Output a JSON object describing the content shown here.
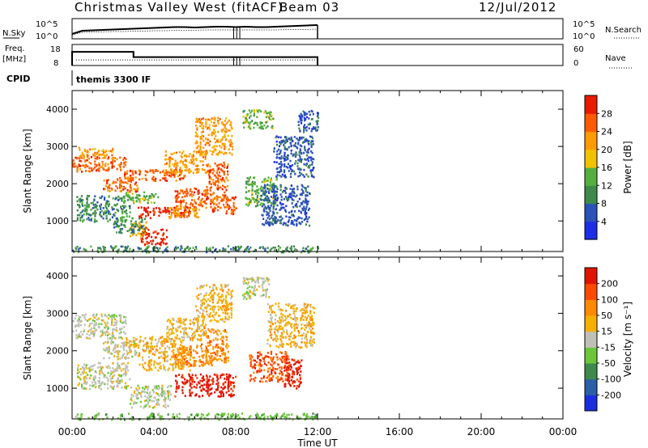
{
  "header": {
    "title": "Christmas Valley West (fitACF)",
    "beam": "Beam 03",
    "date": "12/Jul/2012"
  },
  "chart_data": [
    {
      "type": "line",
      "panel": "noise",
      "left_label": "N.Sky",
      "right_label": "N.Search",
      "left_ticks": [
        "10^5",
        "10^0"
      ],
      "right_ticks": [
        "10^5",
        "10^0"
      ],
      "x_hours": [
        0,
        0.5,
        1,
        1.5,
        2,
        2.5,
        3,
        3.5,
        4,
        4.5,
        5,
        5.5,
        6,
        6.5,
        7,
        7.5,
        8,
        8.5,
        9,
        9.5,
        10,
        10.5,
        11,
        11.5,
        12
      ],
      "n_sky_log": [
        1.2,
        2.0,
        2.1,
        2.2,
        2.3,
        2.4,
        2.5,
        2.6,
        2.7,
        2.8,
        2.9,
        2.9,
        2.8,
        2.9,
        3.0,
        3.0,
        2.9,
        3.0,
        2.9,
        2.9,
        3.0,
        3.1,
        3.2,
        3.3,
        3.4
      ],
      "n_search_log": [
        1.0,
        1.6,
        1.7,
        1.7,
        1.8,
        1.8,
        1.9,
        1.9,
        2.0,
        2.0,
        2.1,
        2.1,
        2.1,
        2.2,
        2.2,
        2.2,
        2.2,
        2.2,
        2.2,
        2.2,
        2.2,
        2.3,
        2.3,
        2.3,
        2.4
      ],
      "ylim_log": [
        0,
        5
      ]
    },
    {
      "type": "line",
      "panel": "frequency",
      "left_label": "Freq.",
      "left_unit": "[MHz]",
      "right_label": "Nave",
      "left_ticks": [
        "18",
        "8"
      ],
      "right_ticks": [
        "60",
        "0"
      ],
      "freq_steps": [
        {
          "from": 0,
          "to": 3,
          "value": 14.5
        },
        {
          "from": 3,
          "to": 12,
          "value": 12.0
        }
      ],
      "nave_level": 16,
      "ylim_freq": [
        8,
        18
      ],
      "ylim_nave": [
        0,
        60
      ]
    },
    {
      "type": "heatmap",
      "panel": "cpid",
      "label": "CPID",
      "program": "themis 3300 IF"
    },
    {
      "type": "heatmap",
      "panel": "power",
      "ylabel": "Slant Range [km]",
      "yticks": [
        "1000",
        "2000",
        "3000",
        "4000"
      ],
      "ylim": [
        180,
        4500
      ],
      "xlim_hours": [
        0,
        24
      ],
      "colorbar_label": "Power [dB]",
      "colorbar_ticks": [
        "4",
        "8",
        "12",
        "16",
        "20",
        "24",
        "28"
      ],
      "colors": [
        "#1e2ee6",
        "#2a52b8",
        "#3f8a4a",
        "#54b03e",
        "#f2c100",
        "#ff9a00",
        "#ff5a00",
        "#e81a00"
      ],
      "blobs": [
        {
          "t0": 0.0,
          "t1": 2.6,
          "r0": 2350,
          "r1": 2750,
          "level": 6
        },
        {
          "t0": 0.3,
          "t1": 2.0,
          "r0": 2700,
          "r1": 3000,
          "level": 5
        },
        {
          "t0": 1.5,
          "t1": 3.2,
          "r0": 1800,
          "r1": 2200,
          "level": 6
        },
        {
          "t0": 2.5,
          "t1": 5.5,
          "r0": 2100,
          "r1": 2400,
          "level": 6
        },
        {
          "t0": 4.5,
          "t1": 6.5,
          "r0": 2300,
          "r1": 2900,
          "level": 5
        },
        {
          "t0": 6.0,
          "t1": 7.8,
          "r0": 2800,
          "r1": 3800,
          "level": 5
        },
        {
          "t0": 3.2,
          "t1": 5.8,
          "r0": 1100,
          "r1": 1400,
          "level": 7
        },
        {
          "t0": 5.0,
          "t1": 6.8,
          "r0": 1350,
          "r1": 1900,
          "level": 6
        },
        {
          "t0": 6.5,
          "t1": 7.6,
          "r0": 1600,
          "r1": 2600,
          "level": 6
        },
        {
          "t0": 3.3,
          "t1": 4.6,
          "r0": 380,
          "r1": 800,
          "level": 7
        },
        {
          "t0": 2.8,
          "t1": 3.6,
          "r0": 600,
          "r1": 1000,
          "level": 5
        },
        {
          "t0": 0.2,
          "t1": 2.8,
          "r0": 1000,
          "r1": 1700,
          "level": 2
        },
        {
          "t0": 2.0,
          "t1": 3.6,
          "r0": 700,
          "r1": 1100,
          "level": 2
        },
        {
          "t0": 2.5,
          "t1": 4.2,
          "r0": 1500,
          "r1": 1800,
          "level": 3
        },
        {
          "t0": 4.6,
          "t1": 6.2,
          "r0": 1100,
          "r1": 1400,
          "level": 5
        },
        {
          "t0": 6.8,
          "t1": 8.0,
          "r0": 1200,
          "r1": 1700,
          "level": 6
        },
        {
          "t0": 8.3,
          "t1": 9.8,
          "r0": 3500,
          "r1": 4000,
          "level": 3
        },
        {
          "t0": 8.4,
          "t1": 10.0,
          "r0": 1400,
          "r1": 2200,
          "level": 3
        },
        {
          "t0": 9.2,
          "t1": 11.6,
          "r0": 900,
          "r1": 2000,
          "level": 1
        },
        {
          "t0": 9.8,
          "t1": 11.8,
          "r0": 2200,
          "r1": 3300,
          "level": 1
        },
        {
          "t0": 11.0,
          "t1": 12.0,
          "r0": 3400,
          "r1": 4000,
          "level": 1
        },
        {
          "t0": 0.0,
          "t1": 12.0,
          "r0": 180,
          "r1": 350,
          "level": 2
        }
      ]
    },
    {
      "type": "heatmap",
      "panel": "velocity",
      "ylabel": "Slant Range [km]",
      "yticks": [
        "1000",
        "2000",
        "3000",
        "4000"
      ],
      "ylim": [
        180,
        4500
      ],
      "xlim_hours": [
        0,
        24
      ],
      "xticks": [
        "00:00",
        "04:00",
        "08:00",
        "12:00",
        "16:00",
        "20:00",
        "00:00"
      ],
      "xlabel": "Time UT",
      "colorbar_label": "Velocity [m s⁻¹]",
      "colorbar_ticks": [
        "200",
        "100",
        "50",
        "15",
        "-15",
        "-50",
        "-100",
        "-200"
      ],
      "colors": [
        "#1a2ee0",
        "#2a5fa8",
        "#3f8a4a",
        "#6cc63a",
        "#c0c0b8",
        "#f5b000",
        "#ff8a00",
        "#ff4a00",
        "#e01400"
      ],
      "blobs": [
        {
          "t0": 0.0,
          "t1": 2.6,
          "r0": 2350,
          "r1": 3000,
          "level": 4
        },
        {
          "t0": 1.5,
          "t1": 3.2,
          "r0": 1800,
          "r1": 2300,
          "level": 4
        },
        {
          "t0": 0.2,
          "t1": 2.8,
          "r0": 1000,
          "r1": 1700,
          "level": 4
        },
        {
          "t0": 2.8,
          "t1": 4.8,
          "r0": 500,
          "r1": 1100,
          "level": 4
        },
        {
          "t0": 2.5,
          "t1": 5.5,
          "r0": 2100,
          "r1": 2400,
          "level": 5
        },
        {
          "t0": 4.5,
          "t1": 6.5,
          "r0": 2300,
          "r1": 2900,
          "level": 5
        },
        {
          "t0": 6.0,
          "t1": 7.8,
          "r0": 2800,
          "r1": 3800,
          "level": 5
        },
        {
          "t0": 3.2,
          "t1": 5.8,
          "r0": 1500,
          "r1": 2100,
          "level": 5
        },
        {
          "t0": 5.0,
          "t1": 6.8,
          "r0": 1600,
          "r1": 2200,
          "level": 6
        },
        {
          "t0": 6.5,
          "t1": 7.6,
          "r0": 1700,
          "r1": 2600,
          "level": 6
        },
        {
          "t0": 5.0,
          "t1": 8.0,
          "r0": 800,
          "r1": 1400,
          "level": 8
        },
        {
          "t0": 8.3,
          "t1": 9.6,
          "r0": 3400,
          "r1": 4000,
          "level": 4
        },
        {
          "t0": 8.6,
          "t1": 10.6,
          "r0": 1200,
          "r1": 2000,
          "level": 7
        },
        {
          "t0": 10.3,
          "t1": 11.2,
          "r0": 1000,
          "r1": 1800,
          "level": 8
        },
        {
          "t0": 9.5,
          "t1": 11.8,
          "r0": 2100,
          "r1": 3300,
          "level": 5
        },
        {
          "t0": 0.0,
          "t1": 12.0,
          "r0": 180,
          "r1": 350,
          "level": 3
        }
      ]
    }
  ]
}
